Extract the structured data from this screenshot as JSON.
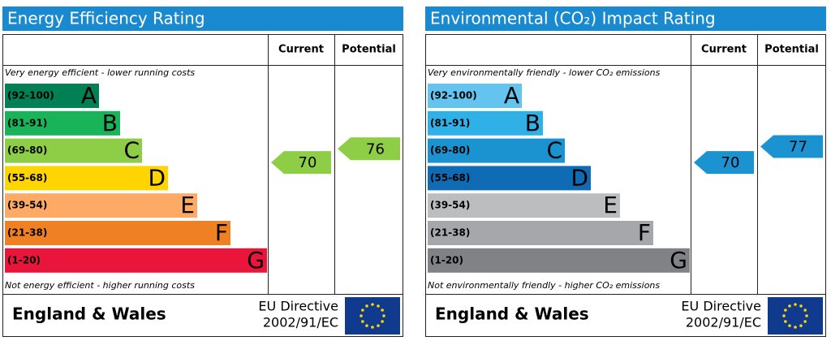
{
  "panels": [
    {
      "title": "Energy Efficiency Rating",
      "headers": [
        "Current",
        "Potential"
      ],
      "top_note": "Very energy efficient - lower running costs",
      "bottom_note": "Not energy efficient - higher running costs",
      "bands": [
        {
          "range": "(92-100)",
          "letter": "A",
          "color": "#008054"
        },
        {
          "range": "(81-91)",
          "letter": "B",
          "color": "#19b459"
        },
        {
          "range": "(69-80)",
          "letter": "C",
          "color": "#8dce46"
        },
        {
          "range": "(55-68)",
          "letter": "D",
          "color": "#ffd500"
        },
        {
          "range": "(39-54)",
          "letter": "E",
          "color": "#fcaa65"
        },
        {
          "range": "(21-38)",
          "letter": "F",
          "color": "#ef8023"
        },
        {
          "range": "(1-20)",
          "letter": "G",
          "color": "#e9153b"
        }
      ],
      "current": {
        "value": 70,
        "color": "#8dce46"
      },
      "potential": {
        "value": 76,
        "color": "#8dce46"
      },
      "region": "England & Wales",
      "directive": [
        "EU Directive",
        "2002/91/EC"
      ]
    },
    {
      "title": "Environmental (CO₂) Impact Rating",
      "headers": [
        "Current",
        "Potential"
      ],
      "top_note": "Very environmentally friendly - lower CO₂ emissions",
      "bottom_note": "Not environmentally friendly - higher CO₂ emissions",
      "bands": [
        {
          "range": "(92-100)",
          "letter": "A",
          "color": "#63c5ef"
        },
        {
          "range": "(81-91)",
          "letter": "B",
          "color": "#2fb1e8"
        },
        {
          "range": "(69-80)",
          "letter": "C",
          "color": "#1b93d1"
        },
        {
          "range": "(55-68)",
          "letter": "D",
          "color": "#0f6cb4"
        },
        {
          "range": "(39-54)",
          "letter": "E",
          "color": "#bbbdbf"
        },
        {
          "range": "(21-38)",
          "letter": "F",
          "color": "#a5a7aa"
        },
        {
          "range": "(1-20)",
          "letter": "G",
          "color": "#808285"
        }
      ],
      "current": {
        "value": 70,
        "color": "#1b93d1"
      },
      "potential": {
        "value": 77,
        "color": "#1b93d1"
      },
      "region": "England & Wales",
      "directive": [
        "EU Directive",
        "2002/91/EC"
      ]
    }
  ]
}
